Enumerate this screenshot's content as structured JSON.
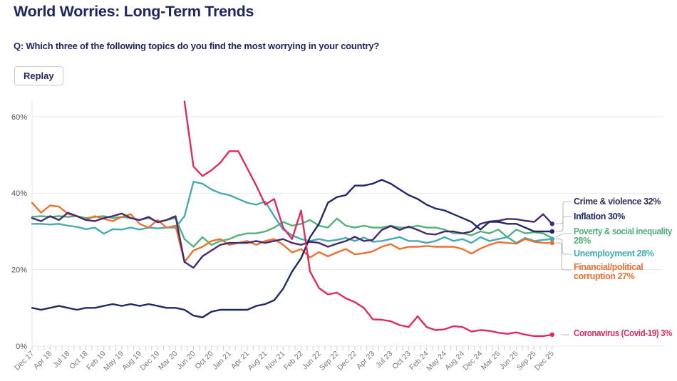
{
  "page": {
    "title": "World Worries: Long-Term Trends",
    "question": "Q: Which three of the following topics do you find the most worrying in your country?",
    "replay_label": "Replay"
  },
  "chart_data": {
    "type": "line",
    "title": "World Worries: Long-Term Trends",
    "xlabel": "",
    "ylabel": "",
    "ylim": [
      0,
      68
    ],
    "grid": "horizontal",
    "legend_position": "right-end-labels",
    "y_tick_labels": [
      "0%",
      "20%",
      "40%",
      "60%"
    ],
    "y_tick_values": [
      0,
      20,
      40,
      60
    ],
    "x_tick_labels": [
      "Dec 17",
      "Apr 18",
      "Jul 18",
      "Oct 18",
      "Feb 19",
      "May 19",
      "Aug 19",
      "Dec 19",
      "Mar 20",
      "Jun 20",
      "Oct 20",
      "Jan 21",
      "Apr 21",
      "Aug 21",
      "Nov 21",
      "Feb 22",
      "Jun 22",
      "Sep 22",
      "Dec 22",
      "Apr 23",
      "Jul 23",
      "Oct 23",
      "Feb 24",
      "May 24",
      "Aug 24",
      "Dec 24",
      "Mar 25",
      "Jun 25",
      "Sep 25",
      "Dec 25"
    ],
    "series": [
      {
        "name": "Crime & violence",
        "end_value": 32,
        "end_label_lines": [
          "Crime & violence 32%"
        ],
        "color": "#472a6e",
        "label_color": "#312d58",
        "z": 4,
        "values": [
          33.5,
          32.7,
          34,
          33,
          34.9,
          34,
          33,
          32.7,
          33.5,
          34,
          34.7,
          33.5,
          33,
          33.8,
          32.4,
          33,
          34,
          22,
          20.5,
          23.5,
          25,
          26.5,
          27,
          27,
          27,
          27.5,
          27,
          27.5,
          28,
          27,
          26.5,
          27.3,
          27,
          26,
          26.8,
          27.5,
          28.6,
          27.5,
          27.8,
          30.4,
          31.4,
          30.4,
          31.3,
          30.4,
          29.4,
          29.2,
          30,
          30,
          29.5,
          30,
          32,
          32.6,
          32.8,
          33.3,
          33.2,
          32.8,
          32.5,
          34.5,
          32
        ]
      },
      {
        "name": "Inflation",
        "end_value": 30,
        "end_label_lines": [
          "Inflation 30%"
        ],
        "color": "#1e2a66",
        "label_color": "#1e2a66",
        "z": 5,
        "values": [
          10,
          9.5,
          10,
          10.5,
          10,
          9.5,
          10,
          10,
          10.5,
          11,
          10.5,
          11,
          10.5,
          11,
          10.5,
          10,
          10,
          9.5,
          8,
          7.5,
          9,
          9.5,
          9.5,
          9.5,
          9.5,
          10.5,
          11,
          12,
          15,
          19.5,
          23,
          28.5,
          32,
          37.5,
          39,
          39.5,
          42,
          42,
          42.5,
          43.5,
          42.5,
          41,
          39.5,
          38.5,
          37,
          36,
          35.5,
          34.5,
          33.5,
          32.5,
          30.5,
          32.5,
          32.5,
          32,
          32,
          31,
          30,
          30,
          30
        ]
      },
      {
        "name": "Poverty & social inequality",
        "end_value": 28,
        "end_label_lines": [
          "Poverty & social inequality",
          "28%"
        ],
        "color": "#53b27c",
        "label_color": "#4fb07a",
        "z": 1,
        "values": [
          33.8,
          34,
          33.8,
          34,
          33.8,
          34,
          33.5,
          33.8,
          34,
          33.5,
          33.8,
          33.5,
          33,
          33.5,
          32.5,
          33,
          33.5,
          28,
          26,
          28.5,
          26.5,
          27.5,
          28,
          29,
          29.5,
          29.5,
          30,
          31,
          32.5,
          31.5,
          32,
          33,
          31.5,
          31,
          33.4,
          31.5,
          31,
          31.5,
          31,
          31,
          31.5,
          31,
          31,
          31.5,
          31,
          31,
          30.5,
          29.5,
          29.5,
          29,
          30,
          29.5,
          30.5,
          28.5,
          30.5,
          29.5,
          29.8,
          29.5,
          28.3
        ]
      },
      {
        "name": "Unemployment",
        "end_value": 28,
        "end_label_lines": [
          "Unemployment 28%"
        ],
        "color": "#44abb3",
        "label_color": "#44abb3",
        "z": 2,
        "values": [
          32,
          32,
          31.8,
          32,
          31.5,
          31.2,
          30.6,
          31,
          29.4,
          30.6,
          30.5,
          31,
          30.5,
          31,
          30.8,
          31,
          31,
          34,
          43,
          42.5,
          41,
          40,
          39.5,
          38.5,
          37.5,
          37,
          37.8,
          34,
          30.5,
          29,
          28,
          27.5,
          28,
          27.5,
          27.8,
          28.3,
          27.5,
          28.4,
          27.3,
          27.5,
          28,
          28.5,
          27.5,
          27.5,
          27,
          27.5,
          28.5,
          27.5,
          28,
          27,
          28.5,
          27.5,
          28,
          28.5,
          27,
          28.3,
          27.5,
          27.8,
          28
        ]
      },
      {
        "name": "Financial/political corruption",
        "end_value": 27,
        "end_label_lines": [
          "Financial/political",
          "corruption 27%"
        ],
        "color": "#ed7033",
        "label_color": "#ed7033",
        "z": 3,
        "values": [
          37.5,
          34.9,
          36.8,
          36.5,
          34.6,
          34,
          33,
          34,
          33.3,
          32.7,
          33.8,
          34.5,
          32,
          31,
          33,
          31,
          31.5,
          22,
          25,
          26,
          27.5,
          28,
          26.5,
          27,
          27.5,
          26.5,
          27.5,
          28,
          26.5,
          24.5,
          25.4,
          23.2,
          24.6,
          23.5,
          24.5,
          25.4,
          24,
          24.3,
          24.8,
          26,
          26.7,
          25.4,
          26,
          26,
          26.2,
          26,
          26,
          26,
          25.4,
          24.2,
          25.5,
          26.5,
          27.2,
          27,
          26.8,
          28,
          27.3,
          27,
          27
        ]
      },
      {
        "name": "Coronavirus (Covid-19)",
        "end_value": 3,
        "end_label_lines": [
          "Coronavirus (Covid-19) 3%"
        ],
        "color": "#e02a5e",
        "label_color": "#e02a5e",
        "z": 6,
        "values": [
          null,
          null,
          null,
          null,
          null,
          null,
          null,
          null,
          null,
          null,
          null,
          null,
          null,
          null,
          null,
          null,
          null,
          64,
          47,
          44.5,
          46,
          48,
          51,
          51,
          46.5,
          42,
          37,
          38.5,
          31,
          28,
          35.5,
          19.5,
          15.2,
          13.5,
          14,
          12.5,
          11.5,
          10,
          7,
          6.9,
          6.5,
          5.5,
          5,
          7.8,
          5,
          4.2,
          4.4,
          5.2,
          5,
          3.8,
          4.2,
          4,
          3.5,
          3.2,
          3.6,
          3,
          2.6,
          2.6,
          3
        ]
      }
    ]
  }
}
